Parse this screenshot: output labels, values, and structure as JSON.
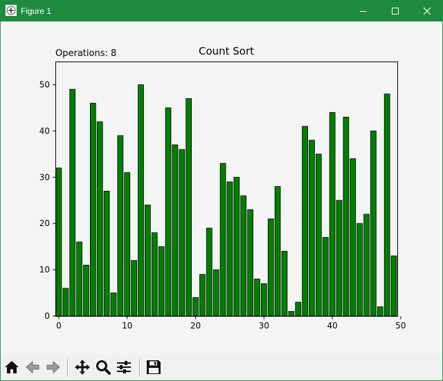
{
  "window": {
    "title": "Figure 1",
    "icons": {
      "app": "figure-app-icon",
      "minimize": "minimize-icon",
      "maximize": "maximize-icon",
      "close": "close-icon"
    },
    "accent": "#1f8b3e"
  },
  "figure": {
    "operations_text": "Operations: 8"
  },
  "toolbar": {
    "buttons": [
      {
        "name": "home-button",
        "icon": "home-icon"
      },
      {
        "name": "back-button",
        "icon": "arrow-left-icon"
      },
      {
        "name": "forward-button",
        "icon": "arrow-right-icon"
      },
      {
        "name": "pan-button",
        "icon": "move-icon"
      },
      {
        "name": "zoom-button",
        "icon": "magnifier-icon"
      },
      {
        "name": "configure-subplots-button",
        "icon": "sliders-icon"
      },
      {
        "name": "save-button",
        "icon": "floppy-disk-icon"
      }
    ]
  },
  "chart_data": {
    "type": "bar",
    "title": "Count Sort",
    "xlabel": "",
    "ylabel": "",
    "x": [
      0,
      1,
      2,
      3,
      4,
      5,
      6,
      7,
      8,
      9,
      10,
      11,
      12,
      13,
      14,
      15,
      16,
      17,
      18,
      19,
      20,
      21,
      22,
      23,
      24,
      25,
      26,
      27,
      28,
      29,
      30,
      31,
      32,
      33,
      34,
      35,
      36,
      37,
      38,
      39,
      40,
      41,
      42,
      43,
      44,
      45,
      46,
      47,
      48,
      49
    ],
    "values": [
      32,
      6,
      49,
      16,
      11,
      46,
      42,
      27,
      5,
      39,
      31,
      12,
      50,
      24,
      18,
      15,
      45,
      37,
      36,
      47,
      4,
      9,
      19,
      10,
      33,
      29,
      30,
      26,
      23,
      8,
      7,
      21,
      28,
      14,
      1,
      3,
      41,
      38,
      35,
      17,
      44,
      25,
      43,
      34,
      20,
      22,
      40,
      2,
      48,
      13
    ],
    "xlim": [
      -0.5,
      49.5
    ],
    "ylim": [
      0,
      55
    ],
    "xticks": [
      0,
      10,
      20,
      30,
      40,
      50
    ],
    "yticks": [
      0,
      10,
      20,
      30,
      40,
      50
    ],
    "bar_color": "#007f00",
    "edge_color": "#000000",
    "grid": false
  }
}
